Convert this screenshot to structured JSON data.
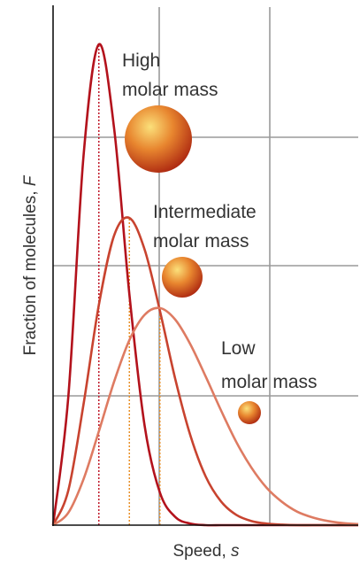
{
  "chart_data": {
    "type": "line",
    "xlabel": "Speed, s",
    "ylabel": "Fraction of molecules, F",
    "xlim": [
      0,
      100
    ],
    "ylim": [
      0,
      100
    ],
    "x": [
      0,
      5,
      10,
      15,
      20,
      25,
      30,
      35,
      40,
      45,
      50,
      55,
      60,
      65,
      70,
      75,
      80,
      85,
      90,
      95,
      100
    ],
    "series": [
      {
        "name": "High molar mass",
        "color": "#b3121c",
        "values": [
          0,
          24.8,
          71.4,
          92.8,
          76.6,
          44.6,
          19.2,
          6.3,
          1.6,
          0.3,
          0.0,
          0,
          0,
          0,
          0,
          0,
          0,
          0,
          0,
          0,
          0
        ]
      },
      {
        "name": "Intermediate molar mass",
        "color": "#c8432f",
        "values": [
          0,
          6.7,
          23.4,
          42.5,
          55.9,
          59.3,
          53.2,
          41.4,
          28.3,
          17.3,
          9.4,
          4.6,
          2.0,
          0.8,
          0.3,
          0.1,
          0,
          0,
          0,
          0,
          0
        ]
      },
      {
        "name": "Low molar mass",
        "color": "#de7b62",
        "values": [
          0,
          2.4,
          8.9,
          18.1,
          27.7,
          35.7,
          40.6,
          41.9,
          39.7,
          34.9,
          28.7,
          22.2,
          16.1,
          11.1,
          7.2,
          4.5,
          2.6,
          1.5,
          0.8,
          0.4,
          0.2
        ]
      }
    ]
  }
}
